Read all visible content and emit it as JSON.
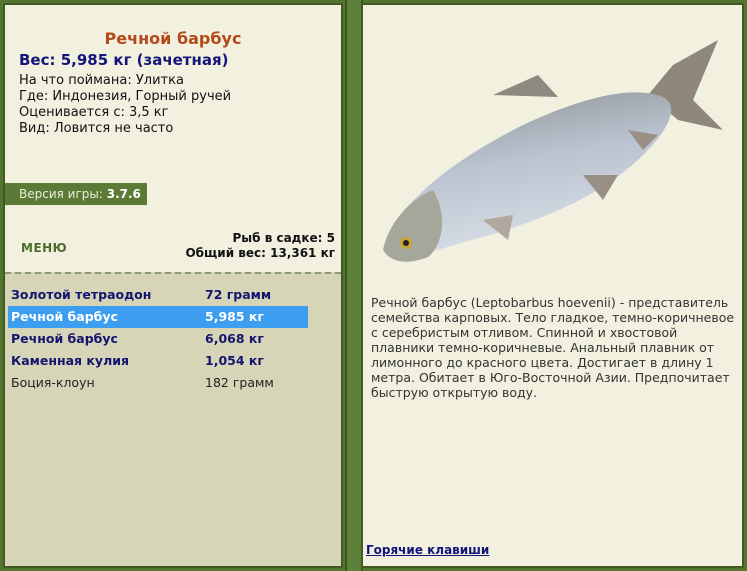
{
  "catch": {
    "title": "Речной барбус",
    "weight": "Вес: 5,985 кг (зачетная)",
    "bait": "На что поймана: Улитка",
    "location": "Где: Индонезия, Горный ручей",
    "rated_from": "Оценивается с: 3,5 кг",
    "kind": "Вид: Ловится не часто"
  },
  "version": {
    "label": "Версия игры: ",
    "value": "3.7.6"
  },
  "menu_label": "МЕНЮ",
  "keepnet": {
    "count": "Рыб в садке: 5",
    "total_weight": "Общий вес: 13,361 кг"
  },
  "fish_list": [
    {
      "name": "Золотой тетраодон",
      "weight": "72 грамм",
      "selected": false
    },
    {
      "name": "Речной барбус",
      "weight": "5,985 кг",
      "selected": true
    },
    {
      "name": "Речной барбус",
      "weight": "6,068 кг",
      "selected": false
    },
    {
      "name": "Каменная кулия",
      "weight": "1,054 кг",
      "selected": false
    },
    {
      "name": "Боция-клоун",
      "weight": "182 грамм",
      "selected": false
    }
  ],
  "description": "Речной барбус (Leptobarbus hoevenii) - представитель семейства карповых. Тело гладкое, темно-коричневое с серебристым отливом. Спинной и хвостовой плавники темно-коричневые. Анальный плавник от лимонного до красного цвета. Достигает в длину 1 метра. Обитает в Юго-Восточной Азии. Предпочитает быструю открытую воду.",
  "hotkeys_link": "Горячие клавиши",
  "colors": {
    "frame": "#55752f",
    "panel": "#f2f1e0",
    "list_bg": "#d6d5b8",
    "selection": "#3d9ef0",
    "title": "#b4491a",
    "bold_text": "#14157a"
  }
}
